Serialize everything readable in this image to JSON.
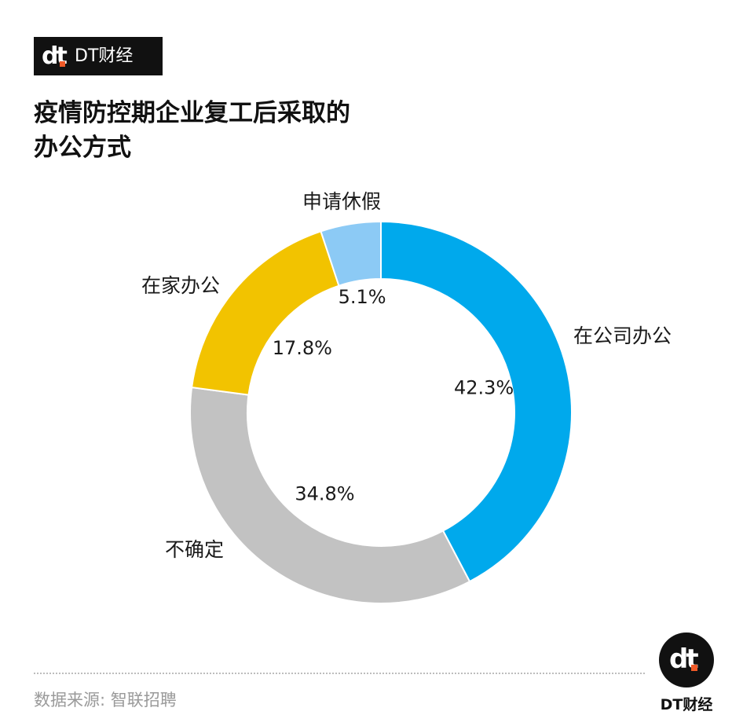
{
  "brand": {
    "mark": "dt",
    "name": "DT财经"
  },
  "title_lines": [
    "疫情防控期企业复工后采取的",
    "办公方式"
  ],
  "chart_data": {
    "type": "pie",
    "style": "donut",
    "slices": [
      {
        "label": "在公司办公",
        "value": 42.3,
        "value_label": "42.3%",
        "color": "#00a9ec"
      },
      {
        "label": "不确定",
        "value": 34.8,
        "value_label": "34.8%",
        "color": "#c2c2c2"
      },
      {
        "label": "在家办公",
        "value": 17.8,
        "value_label": "17.8%",
        "color": "#f2c300"
      },
      {
        "label": "申请休假",
        "value": 5.1,
        "value_label": "5.1%",
        "color": "#8ccaf5"
      }
    ],
    "title": "疫情防控期企业复工后采取的办公方式"
  },
  "source": "数据来源: 智联招聘",
  "footer_logo": {
    "mark": "dt",
    "name": "DT财经"
  }
}
